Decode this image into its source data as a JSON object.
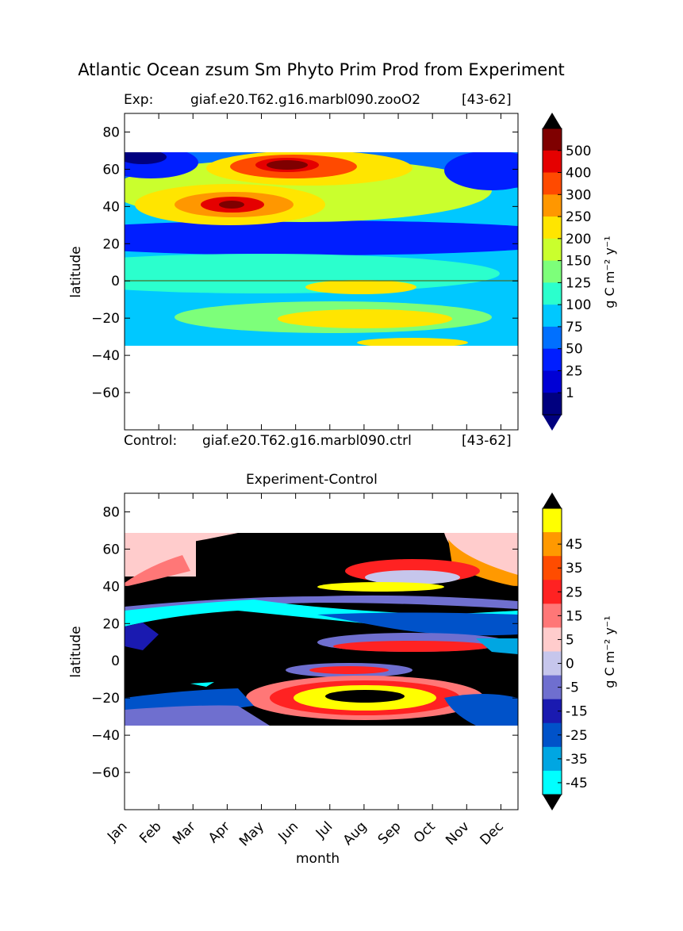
{
  "figure": {
    "title": "Atlantic Ocean zsum Sm Phyto Prim Prod from Experiment",
    "xlabel": "month"
  },
  "top_panel": {
    "exp_prefix": "Exp:",
    "exp_case": "giaf.e20.T62.g16.marbl090.zooO2",
    "exp_years": "[43-62]",
    "ctrl_prefix": "Control:",
    "ctrl_case": "giaf.e20.T62.g16.marbl090.ctrl",
    "ctrl_years": "[43-62]",
    "ylabel": "latitude",
    "colorbar_label": "g C m⁻² y⁻¹",
    "colorbar_ticks": [
      "1",
      "25",
      "50",
      "75",
      "100",
      "125",
      "150",
      "200",
      "250",
      "300",
      "400",
      "500"
    ],
    "colors": [
      "#00007f",
      "#0000d5",
      "#001eff",
      "#0070ff",
      "#00c8ff",
      "#2bffcd",
      "#7dff7a",
      "#caff2d",
      "#ffe500",
      "#ff9700",
      "#ff4a00",
      "#e50000",
      "#7f0000"
    ],
    "over_color": "#000000"
  },
  "bottom_panel": {
    "title": "Experiment-Control",
    "ylabel": "latitude",
    "colorbar_label": "g C m⁻² y⁻¹",
    "colorbar_ticks": [
      "-45",
      "-35",
      "-25",
      "-15",
      "-5",
      "0",
      "5",
      "15",
      "25",
      "35",
      "45"
    ],
    "colors": [
      "#00ffff",
      "#00a6e2",
      "#0052c9",
      "#1a1ab0",
      "#6f6fcf",
      "#c6c6ec",
      "#ffcccc",
      "#ff7777",
      "#ff2222",
      "#ff4c00",
      "#ff9900",
      "#ffff00"
    ],
    "over_color": "#000000",
    "under_color": "#000000"
  },
  "chart_data": [
    {
      "type": "heatmap",
      "title": "Atlantic Ocean zsum Sm Phyto Prim Prod from Experiment",
      "xlabel": "month",
      "ylabel": "latitude",
      "x_categories": [
        "Jan",
        "Feb",
        "Mar",
        "Apr",
        "May",
        "Jun",
        "Jul",
        "Aug",
        "Sep",
        "Oct",
        "Nov",
        "Dec"
      ],
      "yticks": [
        80,
        60,
        40,
        20,
        0,
        -20,
        -40,
        -60
      ],
      "ylim": [
        -80,
        90
      ],
      "data_extent_lat": [
        -34,
        69
      ],
      "levels": [
        1,
        25,
        50,
        75,
        100,
        125,
        150,
        200,
        250,
        300,
        400,
        500
      ],
      "colorbar_label": "g C m⁻² y⁻¹",
      "features": [
        {
          "lat": 62,
          "month": 5,
          "value": 600
        },
        {
          "lat": 40,
          "month": 3.5,
          "value": 500
        },
        {
          "lat": 65,
          "month": 0.3,
          "value": 1
        },
        {
          "lat": 25,
          "month": 6,
          "value": 25
        },
        {
          "lat": -3,
          "month": 7,
          "value": 250
        },
        {
          "lat": -18,
          "month": 7.5,
          "value": 220
        }
      ]
    },
    {
      "type": "heatmap",
      "title": "Experiment-Control",
      "xlabel": "month",
      "ylabel": "latitude",
      "x_categories": [
        "Jan",
        "Feb",
        "Mar",
        "Apr",
        "May",
        "Jun",
        "Jul",
        "Aug",
        "Sep",
        "Oct",
        "Nov",
        "Dec"
      ],
      "yticks": [
        80,
        60,
        40,
        20,
        0,
        -20,
        -40,
        -60
      ],
      "ylim": [
        -80,
        90
      ],
      "data_extent_lat": [
        -34,
        69
      ],
      "levels": [
        -45,
        -35,
        -25,
        -15,
        -5,
        0,
        5,
        15,
        25,
        35,
        45
      ],
      "colorbar_label": "g C m⁻² y⁻¹",
      "features": [
        {
          "lat": 55,
          "month": 4,
          "value": -60
        },
        {
          "lat": 42,
          "month": 7,
          "value": 50
        },
        {
          "lat": 8,
          "month": 7.5,
          "value": 40
        },
        {
          "lat": -5,
          "month": 7,
          "value": 45
        },
        {
          "lat": -18,
          "month": 7.5,
          "value": 60
        },
        {
          "lat": 28,
          "month": 8,
          "value": -30
        }
      ]
    }
  ]
}
